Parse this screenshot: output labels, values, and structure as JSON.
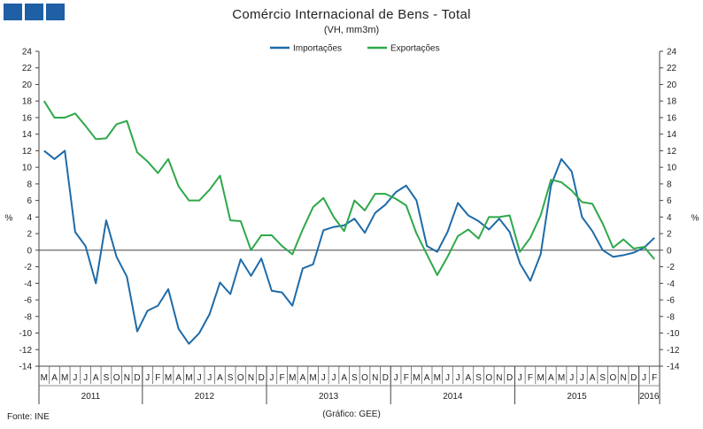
{
  "header": {
    "title": "Comércio Internacional de Bens - Total",
    "subtitle": "(VH, mm3m)"
  },
  "footer": {
    "source": "Fonte: INE",
    "credit": "(Gráfico: GEE)"
  },
  "chart_data": {
    "type": "line",
    "title": "Comércio Internacional de Bens - Total",
    "subtitle": "(VH, mm3m)",
    "ylabel": "%",
    "ylim": [
      -14,
      24
    ],
    "yticks": [
      -14,
      -12,
      -10,
      -8,
      -6,
      -4,
      -2,
      0,
      2,
      4,
      6,
      8,
      10,
      12,
      14,
      16,
      18,
      20,
      22,
      24
    ],
    "grid": false,
    "legend_position": "top-center",
    "month_labels": [
      "M",
      "A",
      "M",
      "J",
      "J",
      "A",
      "S",
      "O",
      "N",
      "D",
      "J",
      "F",
      "M",
      "A",
      "M",
      "J",
      "J",
      "A",
      "S",
      "O",
      "N",
      "D",
      "J",
      "F",
      "M",
      "A",
      "M",
      "J",
      "J",
      "A",
      "S",
      "O",
      "N",
      "D",
      "J",
      "F",
      "M",
      "A",
      "M",
      "J",
      "J",
      "A",
      "S",
      "O",
      "N",
      "D",
      "J",
      "F",
      "M",
      "A",
      "M",
      "J",
      "J",
      "A",
      "S",
      "O",
      "N",
      "D",
      "J",
      "F"
    ],
    "years": [
      "2011",
      "2012",
      "2013",
      "2014",
      "2015",
      "2016"
    ],
    "year_spans": [
      [
        0,
        9
      ],
      [
        10,
        21
      ],
      [
        22,
        33
      ],
      [
        34,
        45
      ],
      [
        46,
        57
      ],
      [
        58,
        59
      ]
    ],
    "series": [
      {
        "name": "Importações",
        "color": "#1f6ba8",
        "values": [
          12.0,
          11.0,
          12.0,
          2.2,
          0.5,
          -4.0,
          3.6,
          -0.8,
          -3.2,
          -9.8,
          -7.3,
          -6.7,
          -4.7,
          -9.5,
          -11.3,
          -10.0,
          -7.7,
          -3.9,
          -5.3,
          -1.1,
          -3.1,
          -1.0,
          -4.9,
          -5.1,
          -6.7,
          -2.2,
          -1.7,
          2.4,
          2.8,
          3.0,
          3.8,
          2.1,
          4.5,
          5.5,
          7.0,
          7.8,
          6.0,
          0.5,
          -0.2,
          2.2,
          5.7,
          4.2,
          3.5,
          2.5,
          3.8,
          2.2,
          -1.6,
          -3.7,
          -0.5,
          7.8,
          11.0,
          9.5,
          4.0,
          2.3,
          0.0,
          -0.8,
          -0.6,
          -0.3,
          0.3,
          1.5
        ]
      },
      {
        "name": "Exportações",
        "color": "#2ea84a",
        "values": [
          18.0,
          16.0,
          16.0,
          16.5,
          15.0,
          13.4,
          13.5,
          15.2,
          15.6,
          11.8,
          10.7,
          9.3,
          11.0,
          7.7,
          6.0,
          6.0,
          7.3,
          9.0,
          3.6,
          3.5,
          0.0,
          1.8,
          1.8,
          0.5,
          -0.5,
          2.5,
          5.2,
          6.3,
          4.0,
          2.3,
          6.0,
          4.8,
          6.8,
          6.8,
          6.2,
          5.4,
          2.0,
          -0.5,
          -3.0,
          -0.8,
          1.7,
          2.5,
          1.4,
          4.0,
          4.0,
          4.2,
          -0.2,
          1.5,
          4.2,
          8.5,
          8.2,
          7.2,
          5.8,
          5.6,
          3.2,
          0.3,
          1.3,
          0.2,
          0.4,
          -1.1
        ]
      }
    ]
  }
}
